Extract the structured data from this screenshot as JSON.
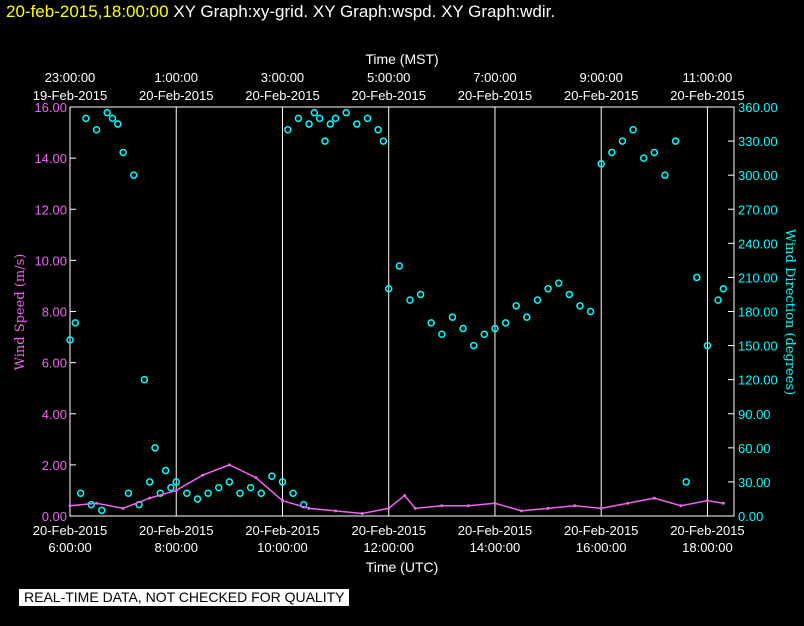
{
  "header": {
    "timestamp": "20-feb-2015,18:00:00",
    "graph1": "XY Graph:xy-grid.",
    "graph2": "XY Graph:wspd.",
    "graph3": "XY Graph:wdir."
  },
  "notice": "REAL-TIME DATA, NOT CHECKED FOR QUALITY",
  "colors": {
    "wspd": "#ee66ee",
    "wdir": "#00ffff",
    "axis": "#ffffff",
    "background": "#000000",
    "timestamp": "#ffff00"
  },
  "chart_data": {
    "type": "scatter",
    "top_axis_label": "Time (MST)",
    "bottom_axis_label": "Time (UTC)",
    "ylabel_left": "Wind Speed (m/s)",
    "ylabel_right": "Wind Direction (degrees)",
    "ylim_left": [
      0,
      16
    ],
    "ylim_right": [
      0,
      360
    ],
    "xlim_hours_utc": [
      6,
      18.5
    ],
    "grid": "vertical lines every 2 hours",
    "left_ticks": [
      "0.00",
      "2.00",
      "4.00",
      "6.00",
      "8.00",
      "10.00",
      "12.00",
      "14.00",
      "16.00"
    ],
    "right_ticks": [
      "0.00",
      "30.00",
      "60.00",
      "90.00",
      "120.00",
      "150.00",
      "180.00",
      "210.00",
      "240.00",
      "270.00",
      "300.00",
      "330.00",
      "360.00"
    ],
    "top_ticks": [
      {
        "hour": 6,
        "time": "23:00:00",
        "date": "19-Feb-2015"
      },
      {
        "hour": 8,
        "time": "1:00:00",
        "date": "20-Feb-2015"
      },
      {
        "hour": 10,
        "time": "3:00:00",
        "date": "20-Feb-2015"
      },
      {
        "hour": 12,
        "time": "5:00:00",
        "date": "20-Feb-2015"
      },
      {
        "hour": 14,
        "time": "7:00:00",
        "date": "20-Feb-2015"
      },
      {
        "hour": 16,
        "time": "9:00:00",
        "date": "20-Feb-2015"
      },
      {
        "hour": 18,
        "time": "11:00:00",
        "date": "20-Feb-2015"
      }
    ],
    "bottom_ticks": [
      {
        "hour": 6,
        "date": "20-Feb-2015",
        "time": "6:00:00"
      },
      {
        "hour": 8,
        "date": "20-Feb-2015",
        "time": "8:00:00"
      },
      {
        "hour": 10,
        "date": "20-Feb-2015",
        "time": "10:00:00"
      },
      {
        "hour": 12,
        "date": "20-Feb-2015",
        "time": "12:00:00"
      },
      {
        "hour": 14,
        "date": "20-Feb-2015",
        "time": "14:00:00"
      },
      {
        "hour": 16,
        "date": "20-Feb-2015",
        "time": "16:00:00"
      },
      {
        "hour": 18,
        "date": "20-Feb-2015",
        "time": "18:00:00"
      }
    ],
    "series": [
      {
        "key": "wdir",
        "axis": "right",
        "x": [
          6.0,
          6.1,
          6.2,
          6.3,
          6.4,
          6.5,
          6.6,
          6.7,
          6.8,
          6.9,
          7.0,
          7.1,
          7.2,
          7.3,
          7.4,
          7.5,
          7.6,
          7.7,
          7.8,
          7.9,
          8.0,
          8.2,
          8.4,
          8.6,
          8.8,
          9.0,
          9.2,
          9.4,
          9.6,
          9.8,
          10.0,
          10.1,
          10.2,
          10.3,
          10.4,
          10.5,
          10.6,
          10.7,
          10.8,
          10.9,
          11.0,
          11.2,
          11.4,
          11.6,
          11.8,
          11.9,
          12.0,
          12.2,
          12.4,
          12.6,
          12.8,
          13.0,
          13.2,
          13.4,
          13.6,
          13.8,
          14.0,
          14.2,
          14.4,
          14.6,
          14.8,
          15.0,
          15.2,
          15.4,
          15.6,
          15.8,
          16.0,
          16.2,
          16.4,
          16.6,
          16.8,
          17.0,
          17.2,
          17.4,
          17.6,
          17.8,
          18.0,
          18.2,
          18.3
        ],
        "y": [
          155,
          170,
          20,
          350,
          10,
          340,
          5,
          355,
          350,
          345,
          320,
          20,
          300,
          10,
          120,
          30,
          60,
          20,
          40,
          25,
          30,
          20,
          15,
          20,
          25,
          30,
          20,
          25,
          20,
          35,
          30,
          340,
          20,
          350,
          10,
          345,
          355,
          350,
          330,
          345,
          350,
          355,
          345,
          350,
          340,
          330,
          200,
          220,
          190,
          195,
          170,
          160,
          175,
          165,
          150,
          160,
          165,
          170,
          185,
          175,
          190,
          200,
          205,
          195,
          185,
          180,
          310,
          320,
          330,
          340,
          315,
          320,
          300,
          330,
          30,
          210,
          150,
          190,
          200
        ]
      },
      {
        "key": "wspd",
        "axis": "left",
        "x": [
          6.0,
          6.5,
          7.0,
          7.5,
          8.0,
          8.5,
          9.0,
          9.5,
          10.0,
          10.5,
          11.0,
          11.5,
          12.0,
          12.3,
          12.5,
          13.0,
          13.5,
          14.0,
          14.5,
          15.0,
          15.5,
          16.0,
          16.5,
          17.0,
          17.5,
          18.0,
          18.3
        ],
        "y": [
          0.4,
          0.5,
          0.3,
          0.7,
          1.0,
          1.6,
          2.0,
          1.5,
          0.6,
          0.3,
          0.2,
          0.1,
          0.3,
          0.8,
          0.3,
          0.4,
          0.4,
          0.5,
          0.2,
          0.3,
          0.4,
          0.3,
          0.5,
          0.7,
          0.4,
          0.6,
          0.5
        ]
      }
    ]
  }
}
